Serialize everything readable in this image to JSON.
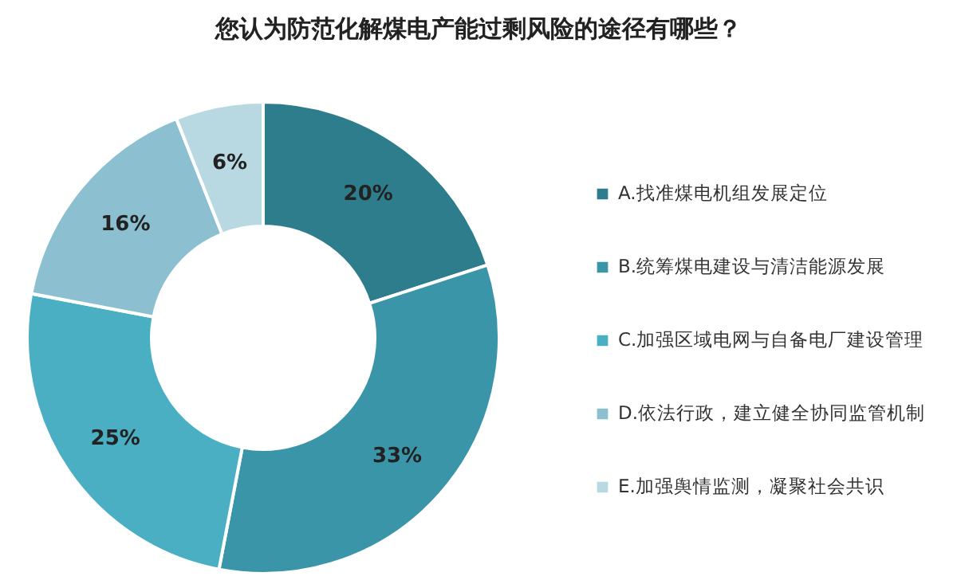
{
  "chart_data": {
    "type": "donut",
    "title": "您认为防范化解煤电产能过剩风险的途径有哪些？",
    "categories": [
      "A.找准煤电机组发展定位",
      "B.统筹煤电建设与清洁能源发展",
      "C.加强区域电网与自备电厂建设管理",
      "D.依法行政，建立健全协同监管机制",
      "E.加强舆情监测，凝聚社会共识"
    ],
    "values": [
      20,
      33,
      25,
      16,
      6
    ],
    "value_labels": [
      "20%",
      "33%",
      "25%",
      "16%",
      "6%"
    ],
    "colors": [
      "#2e7d8c",
      "#3a95a8",
      "#4bafc4",
      "#8cc0d0",
      "#b8d8e2"
    ],
    "legend": "right"
  }
}
